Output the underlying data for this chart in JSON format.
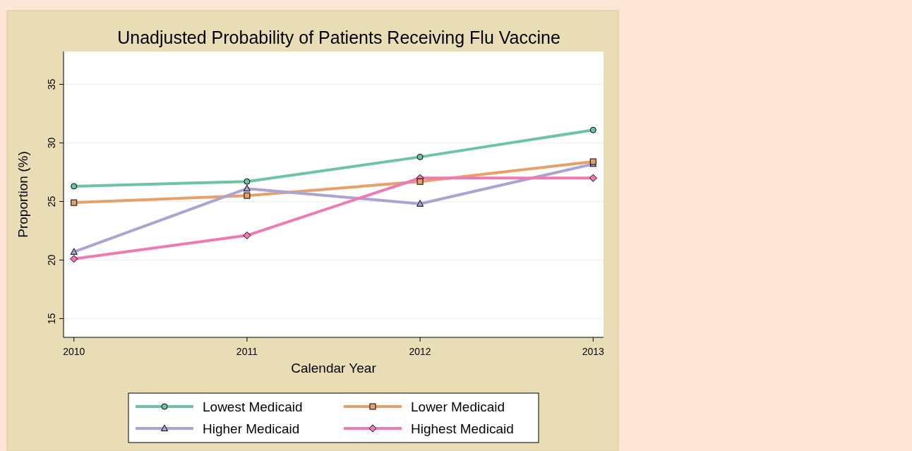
{
  "chart_data": {
    "type": "line",
    "title": "Unadjusted Probability of Patients Receiving Flu Vaccine",
    "xlabel": "Calendar Year",
    "ylabel": "Proportion (%)",
    "x": [
      2010,
      2011,
      2012,
      2013
    ],
    "xlim": [
      2009.94,
      2013.06
    ],
    "xticks": [
      2010,
      2011,
      2012,
      2013
    ],
    "ylim": [
      13.4,
      37.8
    ],
    "yticks": [
      15,
      20,
      25,
      30,
      35
    ],
    "grid": "y",
    "legend": "bottom",
    "series": [
      {
        "name": "Lowest Medicaid",
        "color": "#6cc5a0",
        "marker": "circle",
        "values": [
          26.3,
          26.7,
          28.8,
          31.1
        ]
      },
      {
        "name": "Lower Medicaid",
        "color": "#e8a06a",
        "marker": "square",
        "values": [
          24.9,
          25.5,
          26.7,
          28.4
        ]
      },
      {
        "name": "Higher Medicaid",
        "color": "#a9a4d4",
        "marker": "triangle",
        "values": [
          20.7,
          26.1,
          24.8,
          28.2
        ]
      },
      {
        "name": "Highest Medicaid",
        "color": "#ee7ab5",
        "marker": "diamond",
        "values": [
          20.1,
          22.1,
          27.0,
          27.0
        ]
      }
    ]
  }
}
